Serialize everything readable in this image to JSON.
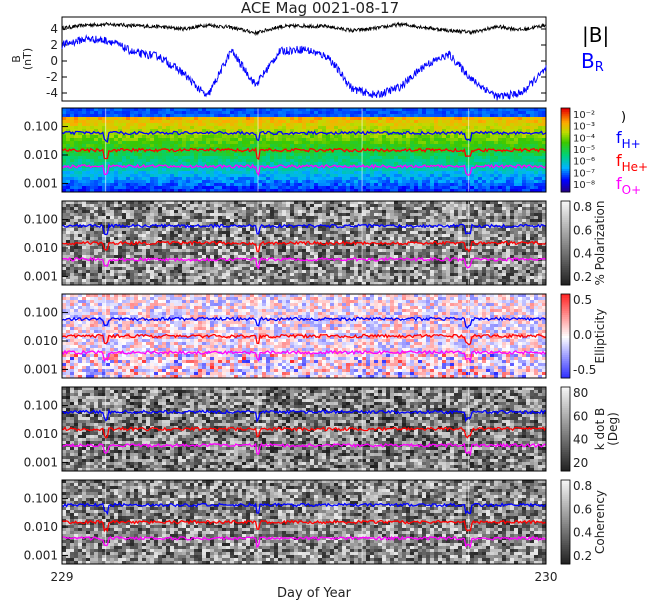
{
  "chart_data": {
    "type": "line",
    "title": "ACE Mag 0021-08-17",
    "xlabel": "Day of Year",
    "xlim": [
      229,
      230
    ],
    "x_ticks": [
      "229",
      "230"
    ],
    "panels": [
      {
        "id": "field",
        "ylabel": [
          "B",
          "(nT)"
        ],
        "ylim": [
          -5,
          5.5
        ],
        "y_ticks": [
          "4",
          "2",
          "0",
          "-2",
          "-4"
        ],
        "y_tick_values": [
          4,
          2,
          0,
          -2,
          -4
        ],
        "series": [
          {
            "name": "|B|",
            "color": "#000000",
            "x": [
              229.0,
              229.05,
              229.1,
              229.15,
              229.2,
              229.25,
              229.3,
              229.35,
              229.4,
              229.45,
              229.5,
              229.55,
              229.6,
              229.65,
              229.7,
              229.75,
              229.8,
              229.85,
              229.9,
              229.95,
              230.0
            ],
            "values": [
              4.1,
              4.5,
              4.6,
              4.4,
              4.3,
              4.0,
              4.5,
              4.2,
              3.5,
              4.3,
              4.4,
              4.3,
              3.8,
              4.1,
              4.6,
              4.2,
              3.8,
              3.6,
              4.3,
              3.9,
              4.5
            ]
          },
          {
            "name": "B_R",
            "color": "#0000ff",
            "x": [
              229.0,
              229.05,
              229.1,
              229.15,
              229.2,
              229.25,
              229.3,
              229.35,
              229.4,
              229.45,
              229.5,
              229.55,
              229.6,
              229.65,
              229.7,
              229.75,
              229.8,
              229.85,
              229.9,
              229.95,
              230.0
            ],
            "values": [
              2.0,
              2.8,
              2.5,
              1.0,
              0.6,
              -1.5,
              -4.5,
              1.3,
              -3.0,
              1.2,
              1.5,
              0.5,
              -3.5,
              -4.3,
              -3.2,
              -0.5,
              0.8,
              -2.5,
              -4.5,
              -4.0,
              -1.0
            ]
          }
        ]
      },
      {
        "id": "power",
        "colorbar_label": "",
        "colorbar_ticks": [
          "10⁻²",
          "10⁻³",
          "10⁻⁴",
          "10⁻⁵",
          "10⁻⁶",
          "10⁻⁷",
          "10⁻⁸"
        ],
        "colormap": "rainbow"
      },
      {
        "id": "polarization",
        "colorbar_label": "% Polarization",
        "colorbar_ticks": [
          "0.8",
          "0.6",
          "0.4",
          "0.2"
        ],
        "colormap": "gray"
      },
      {
        "id": "ellipticity",
        "colorbar_label": "Ellipticity",
        "colorbar_ticks": [
          "0.5",
          "0.0",
          "-0.5"
        ],
        "colormap": "blue-white-red"
      },
      {
        "id": "kdotb",
        "colorbar_label": [
          "k dot B",
          "(Deg)"
        ],
        "colorbar_ticks": [
          "80",
          "60",
          "40",
          "20"
        ],
        "colormap": "gray"
      },
      {
        "id": "coherency",
        "colorbar_label": "Coherency",
        "colorbar_ticks": [
          "0.8",
          "0.6",
          "0.4",
          "0.2"
        ],
        "colormap": "gray"
      }
    ],
    "spectrogram_y_ticks": [
      "0.100",
      "0.010",
      "0.001"
    ],
    "spectrogram_yscale": "log",
    "gyrofrequency_lines": [
      {
        "name": "H+",
        "color": "#0000ff",
        "level": 0.06
      },
      {
        "name": "He+",
        "color": "#ff0000",
        "level": 0.015
      },
      {
        "name": "O+",
        "color": "#ff00ff",
        "level": 0.004
      }
    ],
    "legend": {
      "B_mag_label": "|B|",
      "B_r_base": "B",
      "B_r_sub": "R",
      "f_labels": [
        {
          "base": "f",
          "sub": "H+",
          "color": "#0000ff"
        },
        {
          "base": "f",
          "sub": "He+",
          "color": "#ff0000"
        },
        {
          "base": "f",
          "sub": "O+",
          "color": "#ff00ff"
        }
      ],
      "paren_char": ")"
    }
  }
}
